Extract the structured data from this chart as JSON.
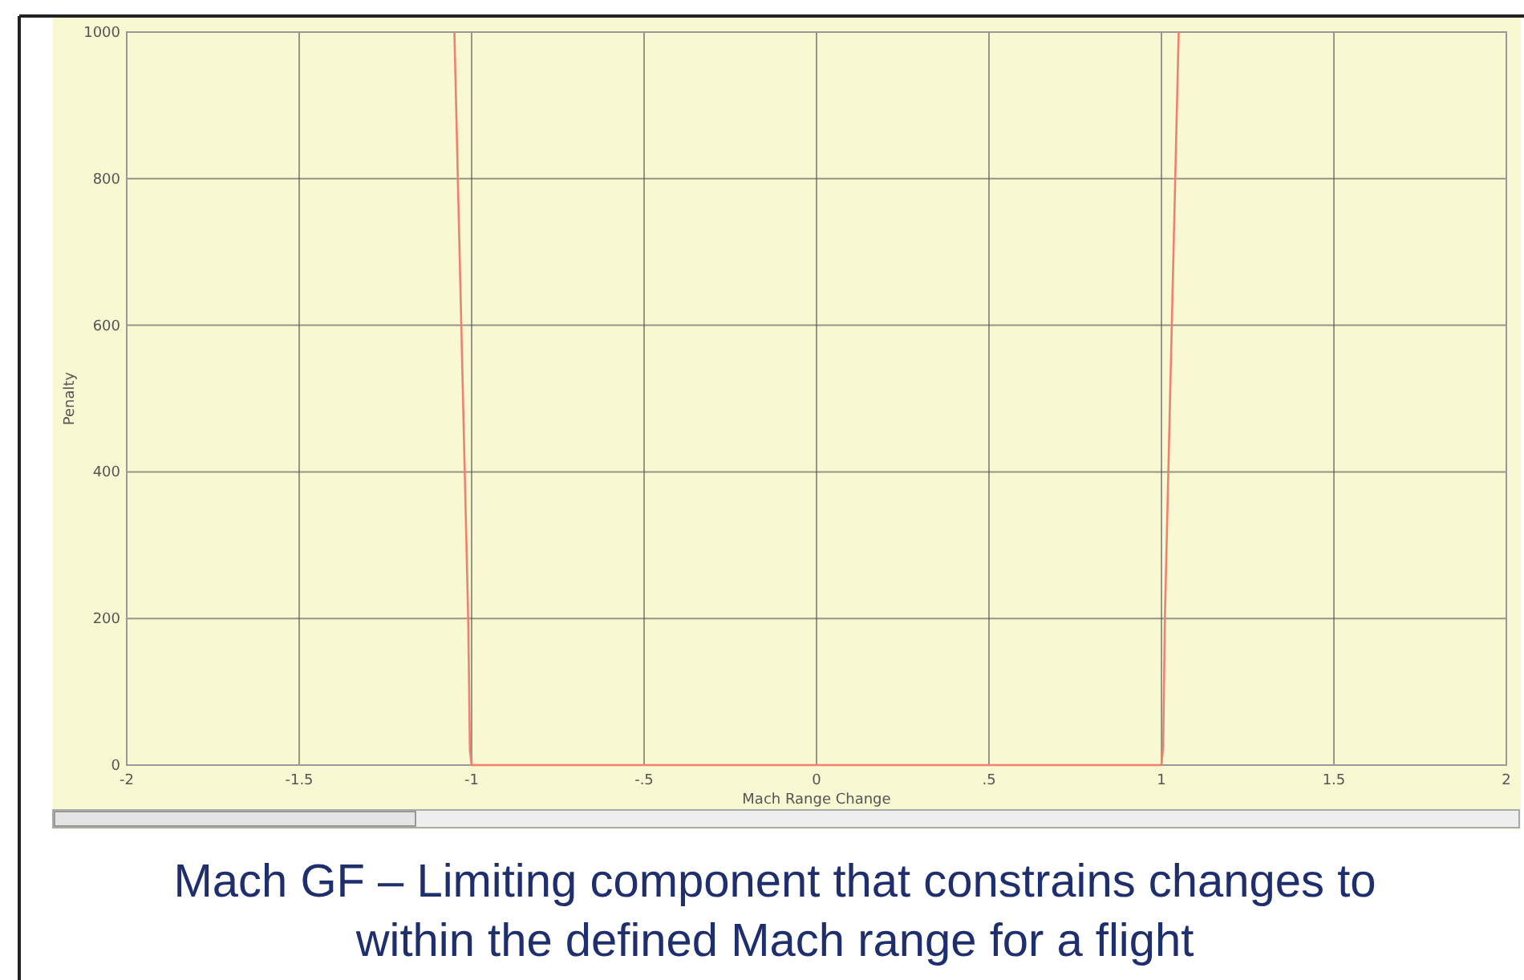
{
  "chart_data": {
    "type": "line",
    "title": "Mach GF – Limiting component that constrains changes to within the defined Mach range for a flight",
    "xlabel": "Mach Range Change",
    "ylabel": "Penalty",
    "x": [
      -1.05,
      -1.04,
      -1.03,
      -1.02,
      -1.01,
      -1.005,
      -1,
      1,
      1.005,
      1.01,
      1.02,
      1.03,
      1.04,
      1.05
    ],
    "series": [
      {
        "color": "#f08070",
        "values": [
          1000,
          800,
          600,
          400,
          200,
          20,
          0,
          0,
          25,
          200,
          400,
          600,
          800,
          1000
        ]
      }
    ],
    "xlim": [
      -2,
      2
    ],
    "xticks": [
      -2,
      -1.5,
      -1,
      {
        "value": -0.5,
        "label": "-.5"
      },
      0,
      {
        "value": 0.5,
        "label": ".5"
      },
      1,
      1.5,
      2
    ],
    "ylim": [
      0,
      1000
    ],
    "yticks": [
      0,
      200,
      400,
      600,
      800,
      1000
    ],
    "grid": true,
    "marker": "none",
    "line_style": "solid"
  }
}
